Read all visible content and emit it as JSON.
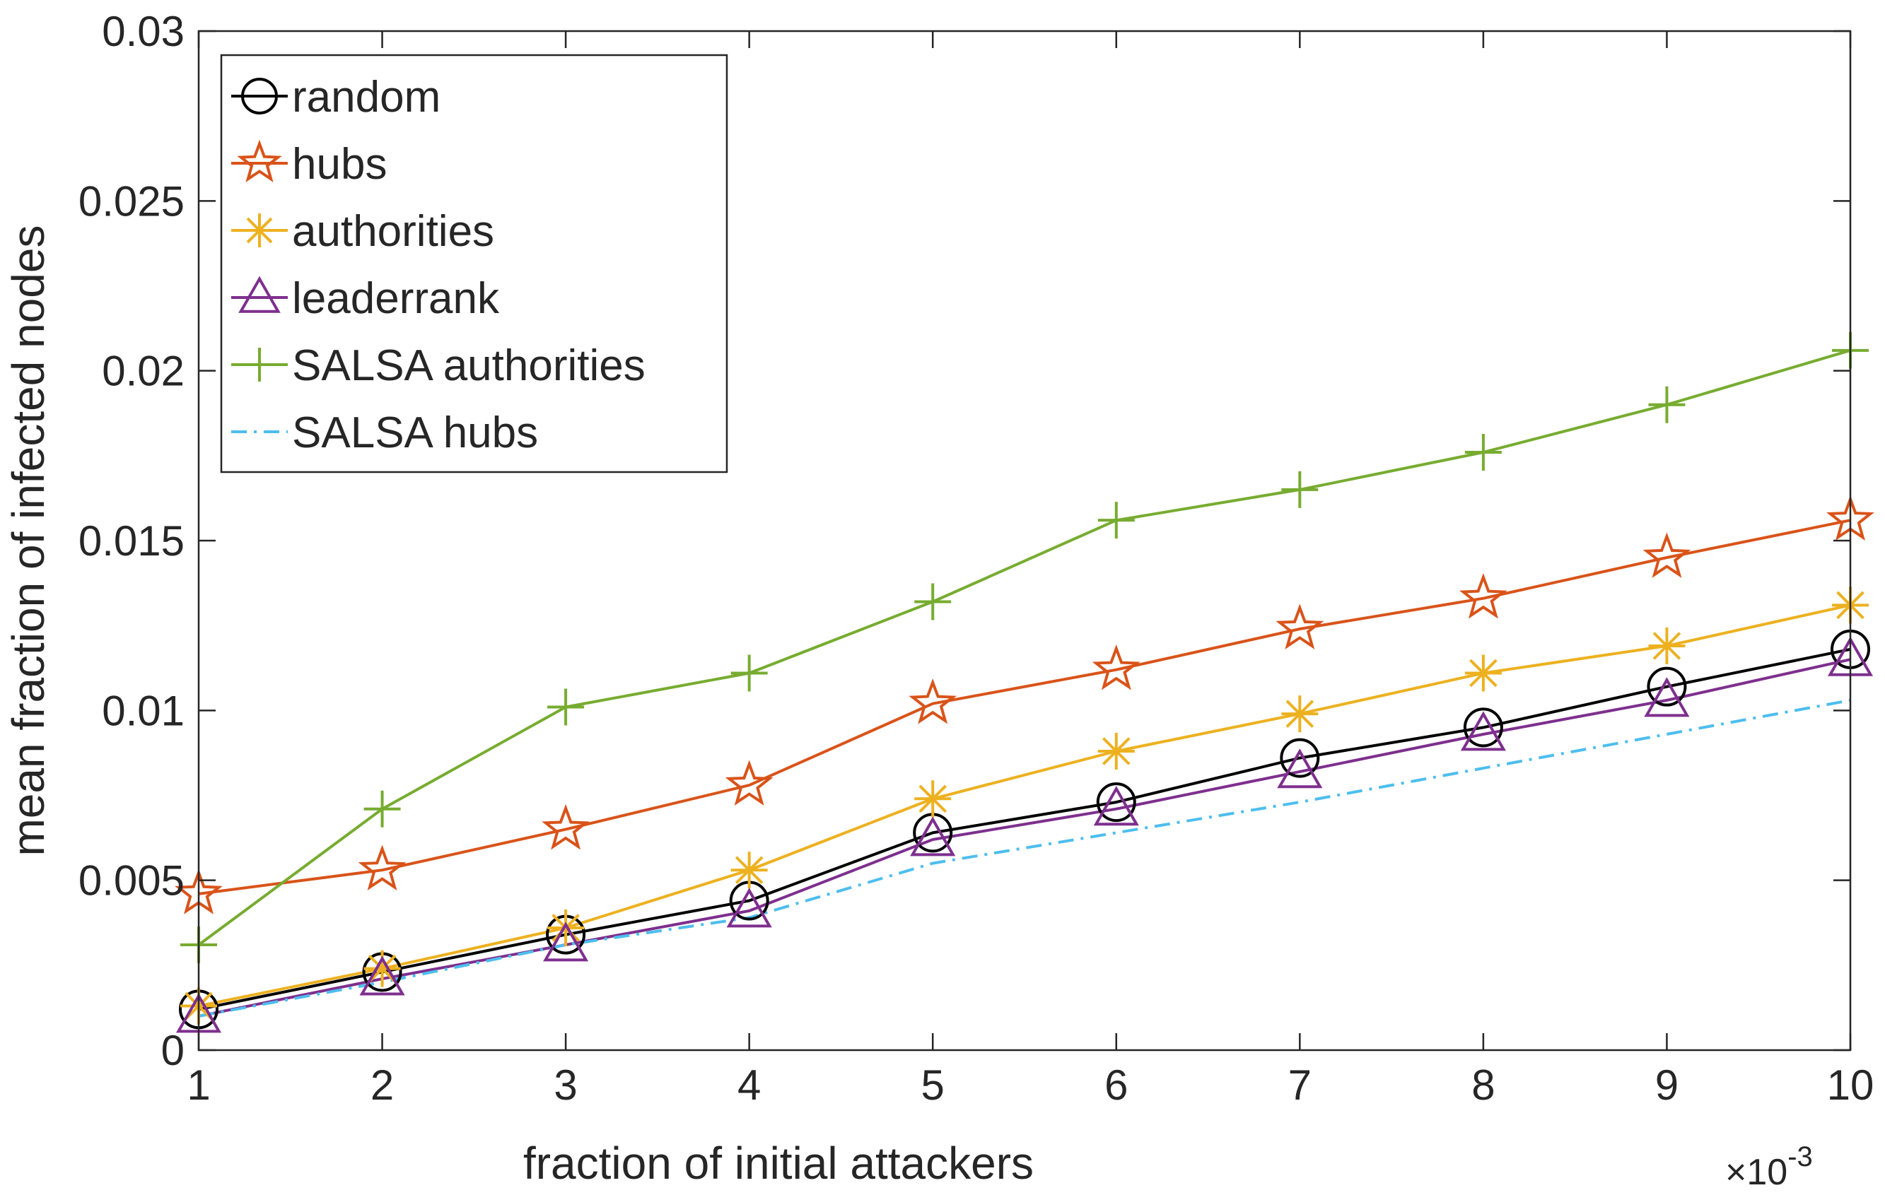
{
  "chart_data": {
    "type": "line",
    "title": "",
    "xlabel": "fraction of initial attackers",
    "ylabel": "mean fraction of infected nodes",
    "x_multiplier_label": "×10",
    "x_multiplier_exponent": "-3",
    "x": [
      1,
      2,
      3,
      4,
      5,
      6,
      7,
      8,
      9,
      10
    ],
    "xlim": [
      1,
      10
    ],
    "ylim": [
      0,
      0.03
    ],
    "x_ticks": [
      "1",
      "2",
      "3",
      "4",
      "5",
      "6",
      "7",
      "8",
      "9",
      "10"
    ],
    "y_ticks": [
      "0",
      "0.005",
      "0.01",
      "0.015",
      "0.02",
      "0.025",
      "0.03"
    ],
    "grid": false,
    "legend_position": "top-left",
    "series": [
      {
        "name": "random",
        "color": "#000000",
        "marker": "circle",
        "line": "solid",
        "values": [
          0.0012,
          0.0023,
          0.0034,
          0.0044,
          0.0064,
          0.0073,
          0.0086,
          0.0095,
          0.0107,
          0.0118
        ]
      },
      {
        "name": "hubs",
        "color": "#D95319",
        "marker": "star",
        "line": "solid",
        "values": [
          0.0046,
          0.0053,
          0.0065,
          0.0078,
          0.0102,
          0.0112,
          0.0124,
          0.0133,
          0.0145,
          0.0156
        ]
      },
      {
        "name": "authorities",
        "color": "#EDB120",
        "marker": "asterisk",
        "line": "solid",
        "values": [
          0.0013,
          0.0024,
          0.0036,
          0.0053,
          0.0074,
          0.0088,
          0.0099,
          0.0111,
          0.0119,
          0.0131
        ]
      },
      {
        "name": "leaderrank",
        "color": "#7E2F8E",
        "marker": "triangle",
        "line": "solid",
        "values": [
          0.001,
          0.0021,
          0.0031,
          0.0041,
          0.0062,
          0.0071,
          0.0082,
          0.0093,
          0.0103,
          0.0115
        ]
      },
      {
        "name": "SALSA authorities",
        "color": "#77AC30",
        "marker": "plus",
        "line": "solid",
        "values": [
          0.0031,
          0.0071,
          0.0101,
          0.0111,
          0.0132,
          0.0156,
          0.0165,
          0.0176,
          0.019,
          0.0206
        ]
      },
      {
        "name": "SALSA hubs",
        "color": "#4DBEEE",
        "marker": "none",
        "line": "dashdot",
        "values": [
          0.001,
          0.002,
          0.0031,
          0.0039,
          0.0055,
          0.0064,
          0.0073,
          0.0083,
          0.0093,
          0.0103
        ]
      }
    ]
  }
}
